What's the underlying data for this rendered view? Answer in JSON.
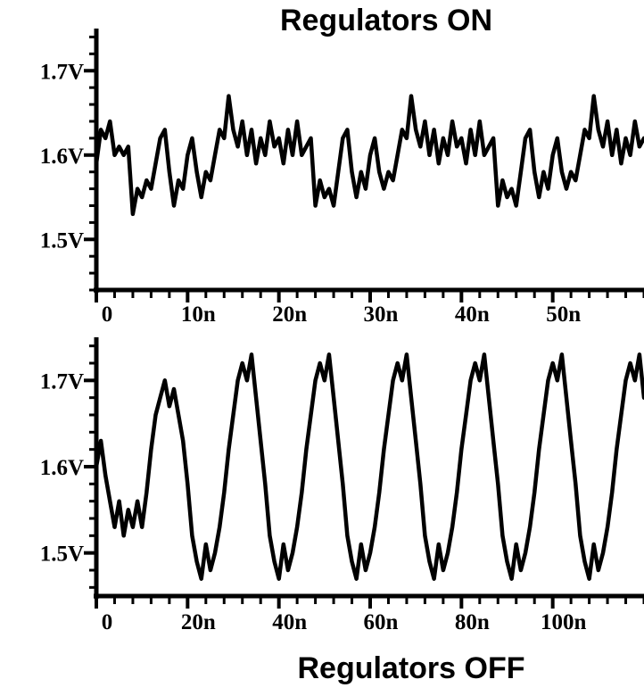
{
  "chart_data": [
    {
      "type": "line",
      "title": "Regulators ON",
      "x_ticks": [
        "0",
        "10n",
        "20n",
        "30n",
        "40n",
        "50n"
      ],
      "y_ticks": [
        "1.7V",
        "1.6V",
        "1.5V"
      ],
      "xlim": [
        0,
        60
      ],
      "ylim": [
        1.44,
        1.75
      ],
      "grid": false,
      "legend": "none",
      "series": [
        {
          "x": [
            0,
            0.5,
            1,
            1.5,
            2,
            2.5,
            3,
            3.5,
            4,
            4.5,
            5,
            5.5,
            6,
            6.5,
            7,
            7.5,
            8,
            8.5,
            9,
            9.5,
            10,
            10.5,
            11,
            11.5,
            12,
            12.5,
            13,
            13.5,
            14,
            14.5,
            15,
            15.5,
            16,
            16.5,
            17,
            17.5,
            18,
            18.5,
            19,
            19.5,
            20,
            20.5,
            21,
            21.5,
            22,
            22.5,
            23,
            23.5,
            24,
            24.5,
            25,
            25.5,
            26,
            26.5,
            27,
            27.5,
            28,
            28.5,
            29,
            29.5,
            30,
            30.5,
            31,
            31.5,
            32,
            32.5,
            33,
            33.5,
            34,
            34.5,
            35,
            35.5,
            36,
            36.5,
            37,
            37.5,
            38,
            38.5,
            39,
            39.5,
            40,
            40.5,
            41,
            41.5,
            42,
            42.5,
            43,
            43.5,
            44,
            44.5,
            45,
            45.5,
            46,
            46.5,
            47,
            47.5,
            48,
            48.5,
            49,
            49.5,
            50,
            50.5,
            51,
            51.5,
            52,
            52.5,
            53,
            53.5,
            54,
            54.5,
            55,
            55.5,
            56,
            56.5,
            57,
            57.5,
            58,
            58.5,
            59,
            59.5,
            60
          ],
          "y": [
            1.59,
            1.63,
            1.62,
            1.64,
            1.6,
            1.61,
            1.6,
            1.61,
            1.53,
            1.56,
            1.55,
            1.57,
            1.56,
            1.59,
            1.62,
            1.63,
            1.58,
            1.54,
            1.57,
            1.56,
            1.6,
            1.62,
            1.58,
            1.55,
            1.58,
            1.57,
            1.6,
            1.63,
            1.62,
            1.67,
            1.63,
            1.61,
            1.64,
            1.6,
            1.63,
            1.59,
            1.62,
            1.6,
            1.64,
            1.61,
            1.62,
            1.59,
            1.63,
            1.6,
            1.64,
            1.6,
            1.61,
            1.62,
            1.54,
            1.57,
            1.55,
            1.56,
            1.54,
            1.58,
            1.62,
            1.63,
            1.58,
            1.55,
            1.58,
            1.56,
            1.6,
            1.62,
            1.58,
            1.56,
            1.58,
            1.57,
            1.6,
            1.63,
            1.62,
            1.67,
            1.63,
            1.61,
            1.64,
            1.6,
            1.63,
            1.59,
            1.62,
            1.6,
            1.64,
            1.61,
            1.62,
            1.59,
            1.63,
            1.6,
            1.64,
            1.6,
            1.61,
            1.62,
            1.54,
            1.57,
            1.55,
            1.56,
            1.54,
            1.58,
            1.62,
            1.63,
            1.58,
            1.55,
            1.58,
            1.56,
            1.6,
            1.62,
            1.58,
            1.56,
            1.58,
            1.57,
            1.6,
            1.63,
            1.62,
            1.67,
            1.63,
            1.61,
            1.64,
            1.6,
            1.63,
            1.59,
            1.62,
            1.6,
            1.64,
            1.61,
            1.62
          ]
        }
      ]
    },
    {
      "type": "line",
      "title": "Regulators OFF",
      "x_ticks": [
        "0",
        "20n",
        "40n",
        "60n",
        "80n",
        "100n"
      ],
      "y_ticks": [
        "1.7V",
        "1.6V",
        "1.5V"
      ],
      "xlim": [
        0,
        120
      ],
      "ylim": [
        1.45,
        1.75
      ],
      "grid": false,
      "legend": "none",
      "series": [
        {
          "x": [
            0,
            1,
            2,
            3,
            4,
            5,
            6,
            7,
            8,
            9,
            10,
            11,
            12,
            13,
            14,
            15,
            16,
            17,
            18,
            19,
            20,
            21,
            22,
            23,
            24,
            25,
            26,
            27,
            28,
            29,
            30,
            31,
            32,
            33,
            34,
            35,
            36,
            37,
            38,
            39,
            40,
            41,
            42,
            43,
            44,
            45,
            46,
            47,
            48,
            49,
            50,
            51,
            52,
            53,
            54,
            55,
            56,
            57,
            58,
            59,
            60,
            61,
            62,
            63,
            64,
            65,
            66,
            67,
            68,
            69,
            70,
            71,
            72,
            73,
            74,
            75,
            76,
            77,
            78,
            79,
            80,
            81,
            82,
            83,
            84,
            85,
            86,
            87,
            88,
            89,
            90,
            91,
            92,
            93,
            94,
            95,
            96,
            97,
            98,
            99,
            100,
            101,
            102,
            103,
            104,
            105,
            106,
            107,
            108,
            109,
            110,
            111,
            112,
            113,
            114,
            115,
            116,
            117,
            118,
            119,
            120
          ],
          "y": [
            1.6,
            1.63,
            1.59,
            1.56,
            1.53,
            1.56,
            1.52,
            1.55,
            1.53,
            1.56,
            1.53,
            1.57,
            1.62,
            1.66,
            1.68,
            1.7,
            1.67,
            1.69,
            1.66,
            1.63,
            1.58,
            1.52,
            1.49,
            1.47,
            1.51,
            1.48,
            1.5,
            1.53,
            1.57,
            1.62,
            1.66,
            1.7,
            1.72,
            1.7,
            1.73,
            1.68,
            1.63,
            1.58,
            1.52,
            1.49,
            1.47,
            1.51,
            1.48,
            1.5,
            1.53,
            1.57,
            1.62,
            1.66,
            1.7,
            1.72,
            1.7,
            1.73,
            1.68,
            1.63,
            1.58,
            1.52,
            1.49,
            1.47,
            1.51,
            1.48,
            1.5,
            1.53,
            1.57,
            1.62,
            1.66,
            1.7,
            1.72,
            1.7,
            1.73,
            1.68,
            1.63,
            1.58,
            1.52,
            1.49,
            1.47,
            1.51,
            1.48,
            1.5,
            1.53,
            1.57,
            1.62,
            1.66,
            1.7,
            1.72,
            1.7,
            1.73,
            1.68,
            1.63,
            1.58,
            1.52,
            1.49,
            1.47,
            1.51,
            1.48,
            1.5,
            1.53,
            1.57,
            1.62,
            1.66,
            1.7,
            1.72,
            1.7,
            1.73,
            1.68,
            1.63,
            1.58,
            1.52,
            1.49,
            1.47,
            1.51,
            1.48,
            1.5,
            1.53,
            1.57,
            1.62,
            1.66,
            1.7,
            1.72,
            1.7,
            1.73,
            1.68
          ]
        }
      ]
    }
  ]
}
